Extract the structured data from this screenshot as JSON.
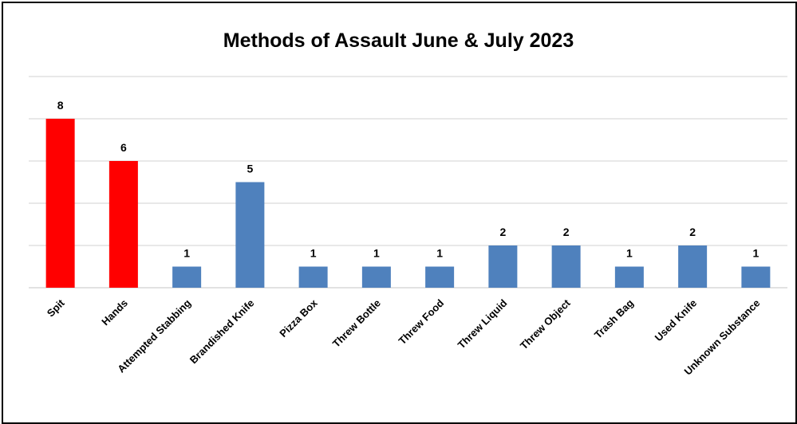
{
  "chart_data": {
    "type": "bar",
    "title": "Methods of Assault June & July 2023",
    "xlabel": "",
    "ylabel": "",
    "categories": [
      "Spit",
      "Hands",
      "Attempted Stabbing",
      "Brandished Knife",
      "Pizza Box",
      "Threw Bottle",
      "Threw Food",
      "Threw Liquid",
      "Threw Object",
      "Trash Bag",
      "Used Knife",
      "Unknown Substance"
    ],
    "values": [
      8,
      6,
      1,
      5,
      1,
      1,
      1,
      2,
      2,
      1,
      2,
      1
    ],
    "bar_colors": [
      "#ff0000",
      "#ff0000",
      "#4f81bd",
      "#4f81bd",
      "#4f81bd",
      "#4f81bd",
      "#4f81bd",
      "#4f81bd",
      "#4f81bd",
      "#4f81bd",
      "#4f81bd",
      "#4f81bd"
    ],
    "ylim": [
      0,
      10
    ],
    "grid": true,
    "y_axis_labels_shown": false,
    "data_labels_shown": true,
    "legend": "none",
    "gridline_color": "#d9d9d9"
  }
}
